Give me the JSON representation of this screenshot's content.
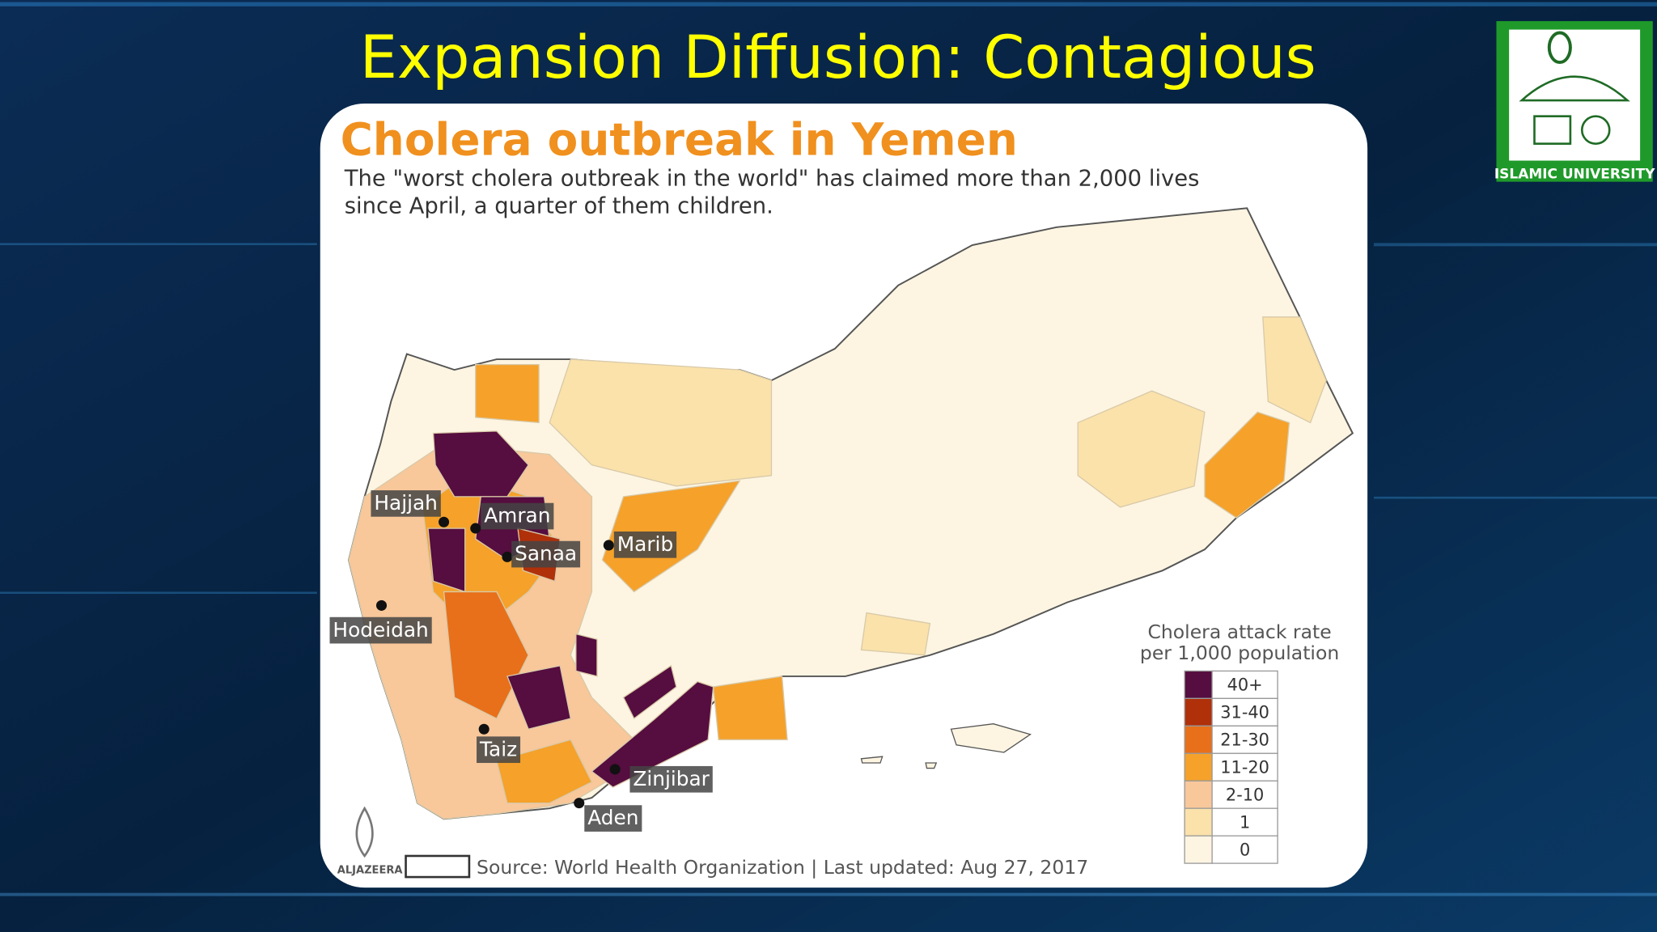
{
  "slide": {
    "title": "Expansion Diffusion: Contagious",
    "logo_text": "ISLAMIC UNIVERSITY"
  },
  "map": {
    "title": "Cholera outbreak in Yemen",
    "subtitle": [
      "The \"worst cholera outbreak in the world\" has claimed more than 2,000 lives",
      "since April, a quarter of them children."
    ],
    "cities": [
      "Hajjah",
      "Amran",
      "Sanaa",
      "Marib",
      "Hodeidah",
      "Taiz",
      "Zinjibar",
      "Aden"
    ],
    "legend": {
      "title": [
        "Cholera attack rate",
        "per 1,000 population"
      ],
      "items": [
        {
          "label": "40+",
          "color": "#560d3f"
        },
        {
          "label": "31-40",
          "color": "#b0300a"
        },
        {
          "label": "21-30",
          "color": "#e8701a"
        },
        {
          "label": "11-20",
          "color": "#f5a12a"
        },
        {
          "label": "2-10",
          "color": "#f8c79a"
        },
        {
          "label": "1",
          "color": "#fbe2aa"
        },
        {
          "label": "0",
          "color": "#fdf5e2"
        }
      ]
    },
    "brand": "ALJAZEERA",
    "source": "Source: World Health Organization | Last updated: Aug 27, 2017"
  }
}
